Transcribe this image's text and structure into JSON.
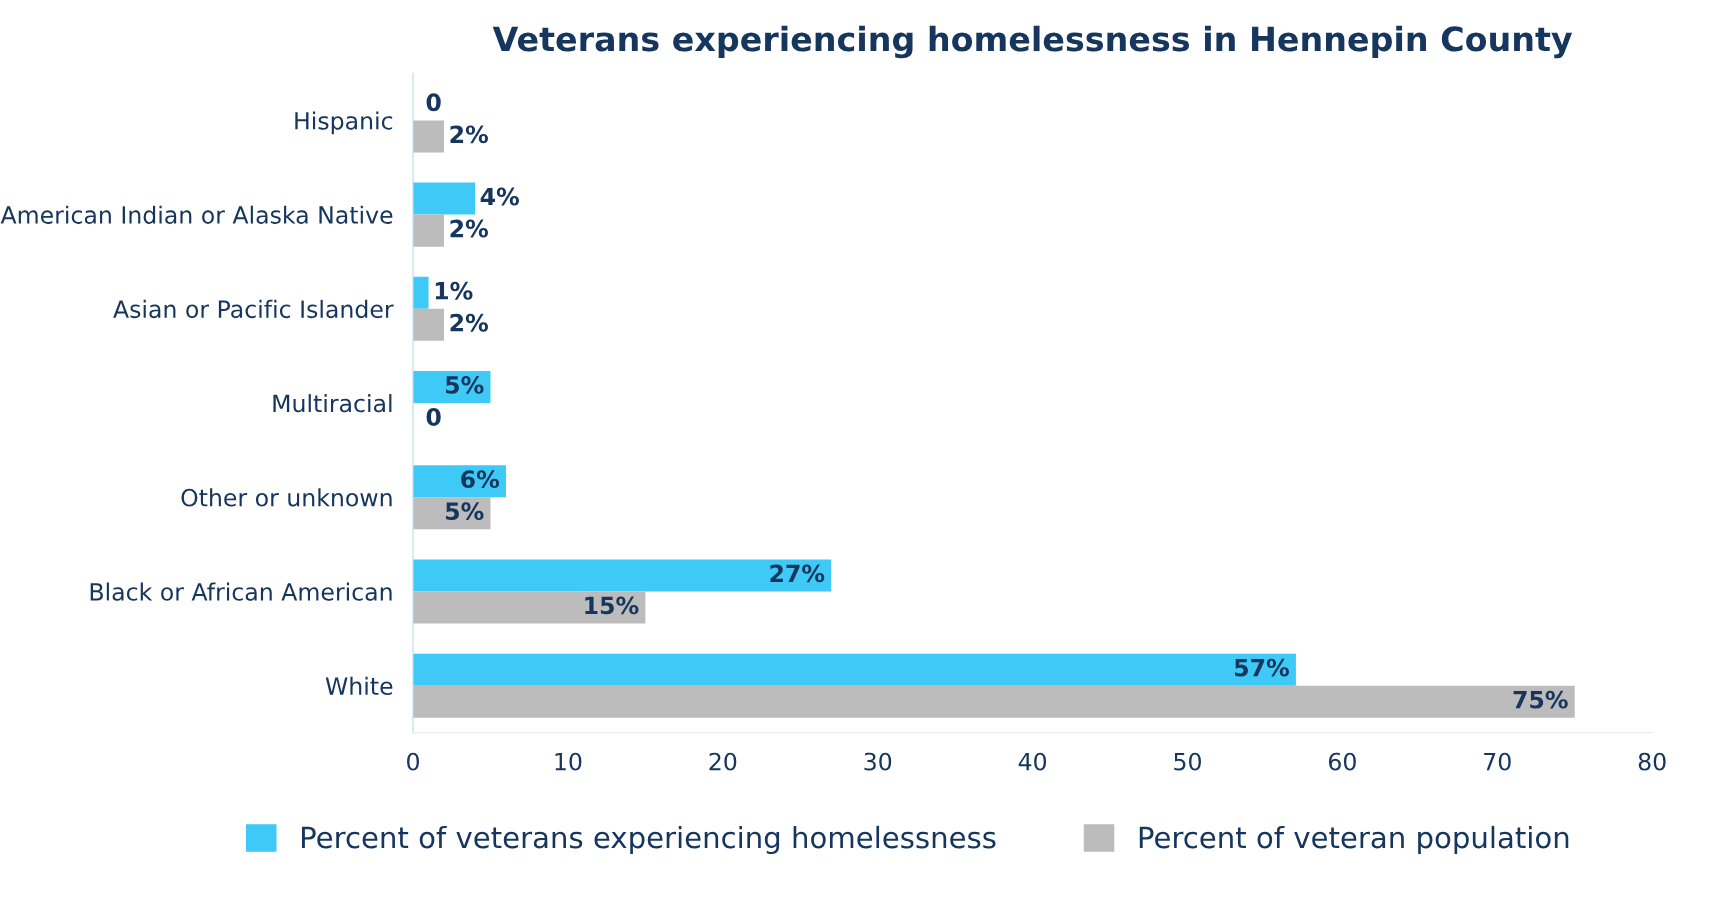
{
  "chart_data": {
    "type": "bar",
    "orientation": "horizontal",
    "title": "Veterans experiencing homelessness in Hennepin County",
    "categories": [
      "Hispanic",
      "American Indian or Alaska Native",
      "Asian or Pacific Islander",
      "Multiracial",
      "Other or unknown",
      "Black or African American",
      "White"
    ],
    "series": [
      {
        "name": "Percent of veterans experiencing homelessness",
        "color": "#3ec9f6",
        "values": [
          0,
          4,
          1,
          5,
          6,
          27,
          57
        ],
        "value_labels": [
          "0",
          "4%",
          "1%",
          "5%",
          "6%",
          "27%",
          "57%"
        ]
      },
      {
        "name": "Percent of veteran population",
        "color": "#bcbcbc",
        "values": [
          2,
          2,
          2,
          0,
          5,
          15,
          75
        ],
        "value_labels": [
          "2%",
          "2%",
          "2%",
          "0",
          "5%",
          "15%",
          "75%"
        ]
      }
    ],
    "xlim": [
      0,
      80
    ],
    "xticks": [
      0,
      10,
      20,
      30,
      40,
      50,
      60,
      70,
      80
    ],
    "grid": false,
    "legend": "bottom"
  }
}
